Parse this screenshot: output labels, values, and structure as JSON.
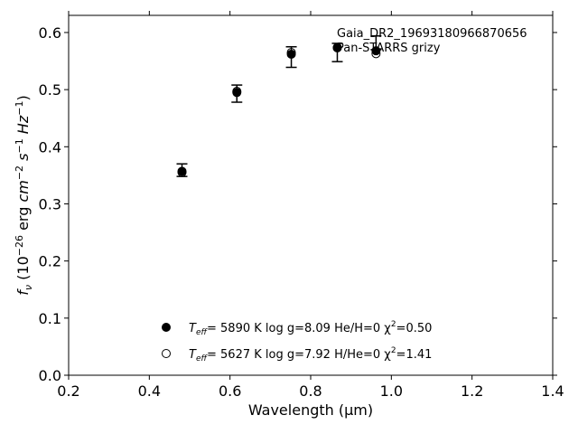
{
  "chart_data": {
    "type": "scatter",
    "title": "",
    "xlabel": "Wavelength (μm)",
    "ylabel": "f_ν (10^-26 erg cm^-2 s^-1 Hz^-1)",
    "xlim": [
      0.2,
      1.4
    ],
    "ylim": [
      0.0,
      0.63
    ],
    "xticks": [
      "0.2",
      "0.4",
      "0.6",
      "0.8",
      "1.0",
      "1.2",
      "1.4"
    ],
    "yticks": [
      "0.0",
      "0.1",
      "0.2",
      "0.3",
      "0.4",
      "0.5",
      "0.6"
    ],
    "grid": false,
    "legend_position": "lower-center",
    "annotations": [
      "Gaia_DR2_19693180966870656",
      "Pan-STARRS grizy"
    ],
    "observed": {
      "x": [
        0.481,
        0.617,
        0.752,
        0.866,
        0.962
      ],
      "y": [
        0.359,
        0.493,
        0.557,
        0.565,
        0.582
      ],
      "yerr": [
        0.011,
        0.015,
        0.018,
        0.016,
        0.012
      ]
    },
    "series": [
      {
        "name": "T_eff= 5890 K log g=8.09 He/H=0 χ²=0.50",
        "marker": "filled-circle",
        "legend_parts": {
          "label": "T",
          "sub": "eff",
          "rest": "=  5890 K  log g=8.09  He/H=0  χ",
          "sup": "2",
          "tail": "=0.50"
        },
        "x": [
          0.481,
          0.617,
          0.752,
          0.866,
          0.962
        ],
        "y": [
          0.357,
          0.495,
          0.562,
          0.573,
          0.568
        ]
      },
      {
        "name": "T_eff= 5627 K log g=7.92 H/He=0 χ²=1.41",
        "marker": "open-circle",
        "legend_parts": {
          "label": "T",
          "sub": "eff",
          "rest": "=  5627 K  log g=7.92  H/He=0  χ",
          "sup": "2",
          "tail": "=1.41"
        },
        "x": [
          0.481,
          0.617,
          0.752,
          0.866,
          0.962
        ],
        "y": [
          0.355,
          0.497,
          0.565,
          0.574,
          0.563
        ]
      }
    ]
  }
}
